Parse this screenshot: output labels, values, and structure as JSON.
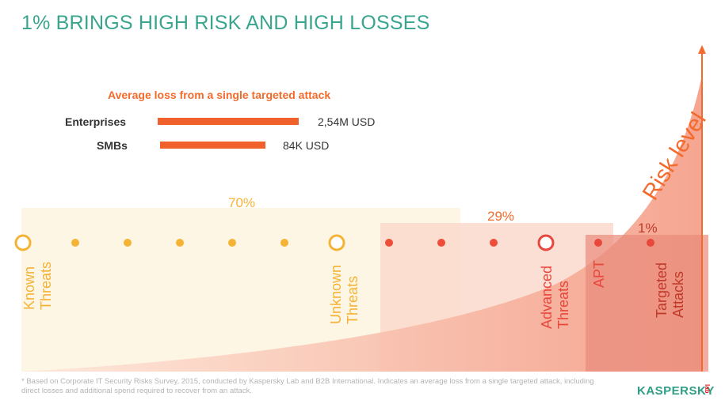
{
  "title": "1% BRINGS HIGH RISK AND HIGH LOSSES",
  "loss": {
    "heading": "Average loss from a single targeted attack",
    "rows": [
      {
        "label": "Enterprises",
        "value": "2,54M USD",
        "amount_usd": 2540000
      },
      {
        "label": "SMBs",
        "value": "84K USD",
        "amount_usd": 84000
      }
    ]
  },
  "segments": {
    "known": "70%",
    "unknown": "29%",
    "targeted": "1%"
  },
  "axis_label": "Risk level",
  "categories": [
    {
      "id": "known",
      "lines": [
        "Known",
        "Threats"
      ]
    },
    {
      "id": "unknown",
      "lines": [
        "Unknown",
        "Threats"
      ]
    },
    {
      "id": "advanced",
      "lines": [
        "Advanced",
        "Threats"
      ]
    },
    {
      "id": "apt",
      "lines": [
        "APT"
      ]
    },
    {
      "id": "targeted",
      "lines": [
        "Targeted",
        "Attacks"
      ]
    }
  ],
  "footnote": "* Based on Corporate IT Security Risks Survey, 2015, conducted by Kaspersky Lab and B2B International. Indicates an average loss from a single targeted attack, including direct losses and additional spend required to recover from an attack.",
  "logo": {
    "main": "KASPERSKY",
    "sub": "lab"
  },
  "colors": {
    "title": "#3aa58e",
    "orange": "#f26b2c",
    "yellow": "#f5b335",
    "red": "#e8473b",
    "risk_fill": "#f7b8a6"
  }
}
